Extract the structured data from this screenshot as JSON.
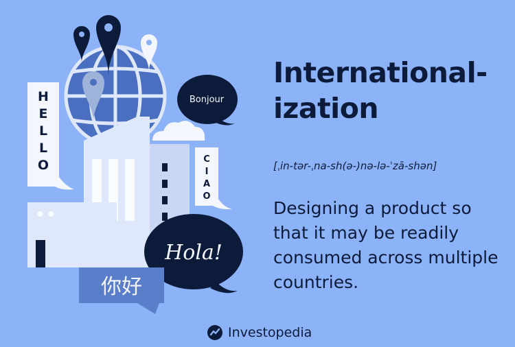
{
  "bubbles": {
    "hello": "HELLO",
    "bonjour": "Bonjour",
    "ciao": "CIAO",
    "hola": "Hola!",
    "nihao": "你好"
  },
  "heading": {
    "line1": "International-",
    "line2": "ization"
  },
  "pronunciation": "[ˌin-tər-ˌna-sh(ə-)nə-lə-ˈzā-shən]",
  "definition": "Designing a product so that it may be readily consumed across multiple countries.",
  "brand": {
    "name": "Investopedia"
  },
  "colors": {
    "background": "#8cb2f7",
    "navy": "#0d1b3a",
    "globe_blue": "#4a6fc0",
    "light": "#dfe8fb",
    "mid_blue": "#5a7ec9"
  },
  "icons": [
    "map-pin-icon",
    "globe-icon",
    "speech-bubble-icon",
    "investopedia-logo-icon"
  ]
}
